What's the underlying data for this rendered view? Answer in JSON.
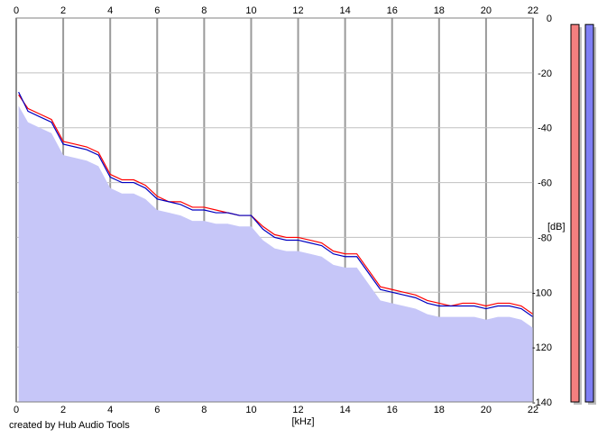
{
  "footer": "created by Hub Audio Tools",
  "chart_data": {
    "type": "line",
    "title": "",
    "xlabel": "[kHz]",
    "ylabel": "[dB]",
    "xlim": [
      0,
      22
    ],
    "ylim": [
      -140,
      0
    ],
    "x_ticks": [
      0,
      2,
      4,
      6,
      8,
      10,
      12,
      14,
      16,
      18,
      20,
      22
    ],
    "y_ticks": [
      0,
      -20,
      -40,
      -60,
      -80,
      -100,
      -120,
      -140
    ],
    "grid": true,
    "legend": "none",
    "colors": {
      "left_channel": "#ff0000",
      "right_channel": "#0000c0",
      "fill": "#c6c6f8",
      "meter_left": "#f47f7f",
      "meter_right": "#7f7ff4"
    },
    "x": [
      0.1,
      0.5,
      1.0,
      1.5,
      2.0,
      2.5,
      3.0,
      3.5,
      4.0,
      4.5,
      5.0,
      5.5,
      6.0,
      6.5,
      7.0,
      7.5,
      8.0,
      8.5,
      9.0,
      9.5,
      10.0,
      10.5,
      11.0,
      11.5,
      12.0,
      12.5,
      13.0,
      13.5,
      14.0,
      14.5,
      15.0,
      15.5,
      16.0,
      16.5,
      17.0,
      17.5,
      18.0,
      18.5,
      19.0,
      19.5,
      20.0,
      20.5,
      21.0,
      21.5,
      22.0
    ],
    "series": [
      {
        "values": [
          -28,
          -33,
          -35,
          -37,
          -45,
          -46,
          -47,
          -49,
          -57,
          -59,
          -59,
          -61,
          -65,
          -67,
          -67,
          -69,
          -69,
          -70,
          -71,
          -72,
          -72,
          -76,
          -79,
          -80,
          -80,
          -81,
          -82,
          -85,
          -86,
          -86,
          -92,
          -98,
          -99,
          -100,
          -101,
          -103,
          -104,
          -105,
          -104,
          -104,
          -105,
          -104,
          -104,
          -105,
          -108
        ]
      },
      {
        "values": [
          -27,
          -34,
          -36,
          -38,
          -46,
          -47,
          -48,
          -50,
          -58,
          -60,
          -60,
          -62,
          -66,
          -67,
          -68,
          -70,
          -70,
          -71,
          -71,
          -72,
          -72,
          -77,
          -80,
          -81,
          -81,
          -82,
          -83,
          -86,
          -87,
          -87,
          -93,
          -99,
          -100,
          -101,
          -102,
          -104,
          -105,
          -105,
          -105,
          -105,
          -106,
          -105,
          -105,
          -106,
          -109
        ]
      }
    ],
    "meters": {
      "left": -3,
      "right": -3
    }
  }
}
